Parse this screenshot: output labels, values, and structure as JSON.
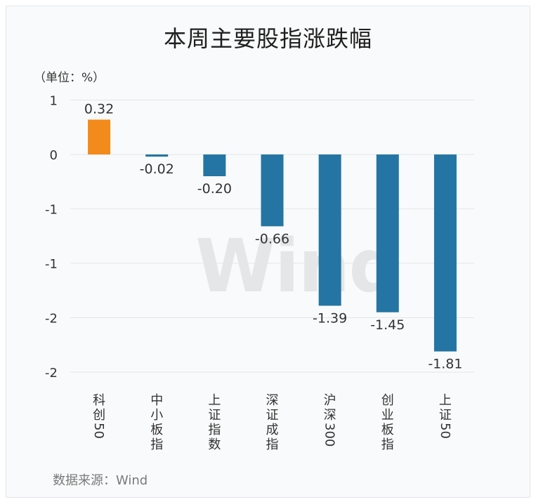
{
  "chart_data": {
    "type": "bar",
    "title": "本周主要股指涨跌幅",
    "unit_label": "（单位：%）",
    "source": "数据来源：Wind",
    "watermark": "Wind",
    "categories": [
      "科创50",
      "中小板指",
      "上证指数",
      "深证成指",
      "沪深300",
      "创业板指",
      "上证50"
    ],
    "values": [
      0.32,
      -0.02,
      -0.2,
      -0.66,
      -1.39,
      -1.45,
      -1.81
    ],
    "value_labels": [
      "0.32",
      "-0.02",
      "-0.20",
      "-0.66",
      "-1.39",
      "-1.45",
      "-1.81"
    ],
    "ytick_labels": [
      "1",
      "0",
      "-1",
      "-1",
      "-2",
      "-2"
    ],
    "ylim": [
      -2.0,
      0.5
    ],
    "grid": true,
    "legend": "none",
    "colors": {
      "positive": "#f38b1c",
      "negative": "#2475a3"
    }
  }
}
